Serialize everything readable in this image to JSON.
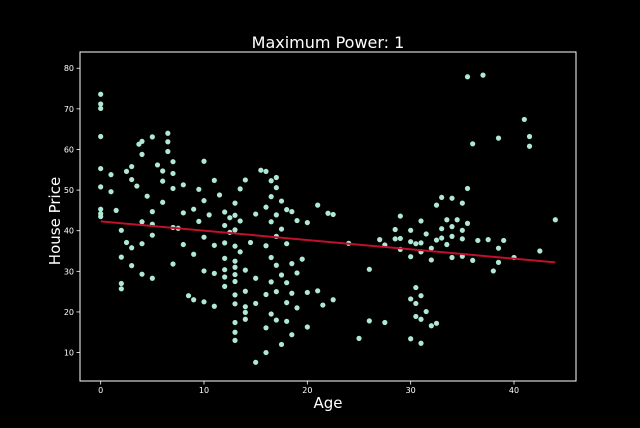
{
  "colors": {
    "background": "#000000",
    "axes": "#ffffff",
    "points": "#b0e8d6",
    "fit_line": "#c0102a"
  },
  "chart_data": {
    "type": "scatter",
    "title": "Maximum Power: 1",
    "xlabel": "Age",
    "ylabel": "House Price",
    "xlim": [
      -2,
      46
    ],
    "ylim": [
      3,
      84
    ],
    "xticks": [
      0,
      10,
      20,
      30,
      40
    ],
    "yticks": [
      10,
      20,
      30,
      40,
      50,
      60,
      70,
      80
    ],
    "grid": false,
    "legend": "none",
    "series": [
      {
        "kind": "points",
        "points": [
          [
            0,
            73.6
          ],
          [
            0,
            71.2
          ],
          [
            0,
            70.1
          ],
          [
            0,
            63.2
          ],
          [
            0,
            55.3
          ],
          [
            0,
            50.8
          ],
          [
            0,
            45.3
          ],
          [
            0,
            44.2
          ],
          [
            0,
            43.5
          ],
          [
            1,
            53.8
          ],
          [
            1,
            49.6
          ],
          [
            1.5,
            45.0
          ],
          [
            2,
            40.1
          ],
          [
            2,
            33.5
          ],
          [
            2,
            27.0
          ],
          [
            2,
            25.7
          ],
          [
            2.5,
            54.6
          ],
          [
            2.5,
            37.1
          ],
          [
            3,
            55.8
          ],
          [
            3,
            52.6
          ],
          [
            3,
            35.8
          ],
          [
            3,
            31.4
          ],
          [
            3.5,
            51.0
          ],
          [
            3.7,
            61.3
          ],
          [
            4,
            62.0
          ],
          [
            4,
            58.8
          ],
          [
            4,
            42.2
          ],
          [
            4,
            36.8
          ],
          [
            4,
            29.3
          ],
          [
            4.5,
            48.5
          ],
          [
            5,
            63.1
          ],
          [
            5,
            44.7
          ],
          [
            5,
            41.6
          ],
          [
            5,
            38.9
          ],
          [
            5,
            28.3
          ],
          [
            5.5,
            56.2
          ],
          [
            6,
            54.7
          ],
          [
            6,
            52.2
          ],
          [
            6,
            47.0
          ],
          [
            6.5,
            64.0
          ],
          [
            6.5,
            61.9
          ],
          [
            6.5,
            59.5
          ],
          [
            7,
            57.0
          ],
          [
            7,
            54.1
          ],
          [
            7,
            50.4
          ],
          [
            7,
            40.8
          ],
          [
            7,
            31.8
          ],
          [
            7.5,
            40.6
          ],
          [
            8,
            51.3
          ],
          [
            8,
            44.4
          ],
          [
            8,
            36.6
          ],
          [
            8.5,
            24.0
          ],
          [
            9,
            45.3
          ],
          [
            9,
            34.2
          ],
          [
            9,
            23.0
          ],
          [
            9.5,
            50.2
          ],
          [
            9.5,
            42.3
          ],
          [
            10,
            57.1
          ],
          [
            10,
            47.4
          ],
          [
            10,
            38.4
          ],
          [
            10,
            30.1
          ],
          [
            10,
            22.5
          ],
          [
            10.5,
            43.9
          ],
          [
            11,
            52.4
          ],
          [
            11,
            36.4
          ],
          [
            11,
            29.5
          ],
          [
            11,
            21.4
          ],
          [
            11.5,
            48.8
          ],
          [
            12,
            44.6
          ],
          [
            12,
            41.3
          ],
          [
            12,
            37.0
          ],
          [
            12,
            33.2
          ],
          [
            12,
            30.4
          ],
          [
            12,
            28.6
          ],
          [
            12,
            26.3
          ],
          [
            12.5,
            43.2
          ],
          [
            12.5,
            39.6
          ],
          [
            13,
            46.8
          ],
          [
            13,
            43.8
          ],
          [
            13,
            40.2
          ],
          [
            13,
            36.2
          ],
          [
            13,
            32.5
          ],
          [
            13,
            31.0
          ],
          [
            13,
            29.2
          ],
          [
            13,
            27.5
          ],
          [
            13,
            24.2
          ],
          [
            13,
            22.0
          ],
          [
            13,
            17.4
          ],
          [
            13,
            15.0
          ],
          [
            13,
            13.0
          ],
          [
            13.5,
            50.3
          ],
          [
            13.5,
            42.4
          ],
          [
            13.5,
            34.8
          ],
          [
            14,
            52.5
          ],
          [
            14,
            30.3
          ],
          [
            14,
            25.1
          ],
          [
            14,
            21.3
          ],
          [
            14,
            19.9
          ],
          [
            14,
            18.2
          ],
          [
            14.5,
            37.1
          ],
          [
            15,
            44.1
          ],
          [
            15,
            28.3
          ],
          [
            15,
            22.1
          ],
          [
            15,
            7.6
          ],
          [
            15.5,
            54.9
          ],
          [
            16,
            54.6
          ],
          [
            16,
            45.8
          ],
          [
            16,
            36.3
          ],
          [
            16,
            24.3
          ],
          [
            16,
            16.1
          ],
          [
            16,
            10.0
          ],
          [
            16.5,
            52.3
          ],
          [
            16.5,
            48.4
          ],
          [
            16.5,
            42.2
          ],
          [
            16.5,
            33.4
          ],
          [
            16.5,
            27.4
          ],
          [
            16.5,
            19.5
          ],
          [
            17,
            53.1
          ],
          [
            17,
            50.6
          ],
          [
            17,
            43.9
          ],
          [
            17,
            38.6
          ],
          [
            17,
            31.5
          ],
          [
            17,
            25.0
          ],
          [
            17,
            18.0
          ],
          [
            17.5,
            47.3
          ],
          [
            17.5,
            40.4
          ],
          [
            17.5,
            29.1
          ],
          [
            17.5,
            12.0
          ],
          [
            18,
            45.2
          ],
          [
            18,
            36.8
          ],
          [
            18,
            27.2
          ],
          [
            18,
            22.3
          ],
          [
            18,
            17.7
          ],
          [
            18.5,
            44.7
          ],
          [
            18.5,
            31.9
          ],
          [
            18.5,
            24.6
          ],
          [
            18.5,
            14.4
          ],
          [
            19,
            42.5
          ],
          [
            19,
            29.6
          ],
          [
            19,
            21.0
          ],
          [
            19.5,
            33.0
          ],
          [
            20,
            42.0
          ],
          [
            20,
            24.8
          ],
          [
            20,
            16.3
          ],
          [
            21,
            46.3
          ],
          [
            21,
            25.2
          ],
          [
            21.5,
            21.7
          ],
          [
            22,
            44.3
          ],
          [
            22.5,
            44.0
          ],
          [
            22.5,
            23.0
          ],
          [
            24,
            36.9
          ],
          [
            25,
            13.5
          ],
          [
            26,
            30.5
          ],
          [
            26,
            17.8
          ],
          [
            27,
            37.8
          ],
          [
            27.5,
            36.5
          ],
          [
            27.5,
            17.4
          ],
          [
            28.5,
            40.3
          ],
          [
            28.5,
            38.0
          ],
          [
            29,
            43.6
          ],
          [
            29,
            38.1
          ],
          [
            29,
            35.4
          ],
          [
            30,
            40.1
          ],
          [
            30,
            37.3
          ],
          [
            30,
            33.6
          ],
          [
            30,
            23.2
          ],
          [
            30,
            13.4
          ],
          [
            30.5,
            36.8
          ],
          [
            30.5,
            26.0
          ],
          [
            30.5,
            22.1
          ],
          [
            30.5,
            18.9
          ],
          [
            31,
            42.4
          ],
          [
            31,
            37.0
          ],
          [
            31,
            34.8
          ],
          [
            31,
            24.0
          ],
          [
            31,
            18.2
          ],
          [
            31,
            12.3
          ],
          [
            31.5,
            39.2
          ],
          [
            31.5,
            20.1
          ],
          [
            32,
            35.7
          ],
          [
            32,
            32.8
          ],
          [
            32,
            16.6
          ],
          [
            32.5,
            46.3
          ],
          [
            32.5,
            37.7
          ],
          [
            32.5,
            17.2
          ],
          [
            33,
            48.2
          ],
          [
            33,
            40.5
          ],
          [
            33,
            38.2
          ],
          [
            33.5,
            42.7
          ],
          [
            33.5,
            36.6
          ],
          [
            34,
            48.0
          ],
          [
            34,
            41.0
          ],
          [
            34,
            38.6
          ],
          [
            34,
            33.4
          ],
          [
            34.5,
            42.7
          ],
          [
            35,
            46.8
          ],
          [
            35,
            40.1
          ],
          [
            35,
            38.0
          ],
          [
            35,
            33.7
          ],
          [
            35.5,
            77.9
          ],
          [
            35.5,
            50.4
          ],
          [
            35.5,
            41.8
          ],
          [
            36,
            61.4
          ],
          [
            36,
            32.7
          ],
          [
            36.5,
            37.6
          ],
          [
            37,
            78.3
          ],
          [
            37.5,
            37.8
          ],
          [
            38,
            30.1
          ],
          [
            38.5,
            62.8
          ],
          [
            38.5,
            35.7
          ],
          [
            38.5,
            32.2
          ],
          [
            39,
            37.6
          ],
          [
            40,
            33.4
          ],
          [
            41,
            67.4
          ],
          [
            41.5,
            63.2
          ],
          [
            41.5,
            60.8
          ],
          [
            42.5,
            35.0
          ],
          [
            44,
            42.7
          ]
        ]
      },
      {
        "kind": "fit_line",
        "points": [
          [
            0,
            42.3
          ],
          [
            44,
            32.2
          ]
        ]
      }
    ]
  }
}
